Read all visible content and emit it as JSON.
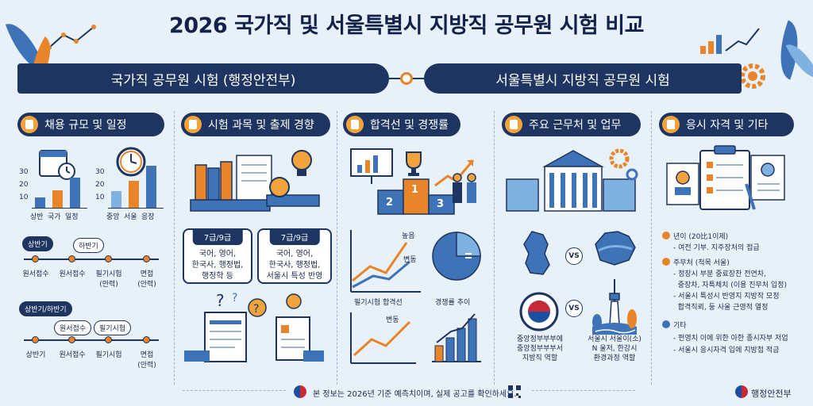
{
  "title": "2026 국가직 및 서울특별시 지방직 공무원 시험 비교",
  "banner_left": "국가직 공무원 시험 (행정안전부)",
  "banner_right": "서울특별시 지방직 공무원 시험",
  "colors": {
    "navy": "#1e3461",
    "orange": "#e8852a",
    "blue": "#3e73b8",
    "light_blue": "#7fb2e0",
    "bg": "#e8f0f8"
  },
  "columns": [
    {
      "title": "채용 규모 및 일정",
      "icon": "calendar-icon"
    },
    {
      "title": "시험 과목 및 출제 경향",
      "icon": "document-icon"
    },
    {
      "title": "합격선 및 경쟁률",
      "icon": "chart-icon"
    },
    {
      "title": "주요 근무처 및 업무",
      "icon": "briefcase-icon"
    },
    {
      "title": "응시 자격 및 기타",
      "icon": "checklist-icon"
    }
  ],
  "col1": {
    "chart1": {
      "ticks": [
        "30",
        "20",
        "10"
      ],
      "labels": [
        "상반",
        "국가",
        "일정"
      ],
      "values": [
        8,
        14,
        24
      ]
    },
    "chart2": {
      "ticks": [
        "30",
        "20",
        "10"
      ],
      "labels": [
        "중앙",
        "서울",
        "응장"
      ],
      "values": [
        13,
        21,
        33
      ]
    },
    "timeline1": {
      "tag_a": "상반기",
      "tag_b": "하반기",
      "steps": [
        "원서접수",
        "원서접수",
        "필기시험\n(만력)",
        "면접\n(안력)"
      ]
    },
    "timeline2": {
      "tag_a": "상반기/하반기",
      "pill_a": "원서접수",
      "pill_b": "필기시험",
      "steps": [
        "상반기",
        "원서접수",
        "필기시험",
        "면접\n(안력)"
      ]
    }
  },
  "col2": {
    "card_left": {
      "tag": "7급/9급",
      "lines": [
        "국어, 영어,",
        "한국사, 행정법,",
        "행정학 등"
      ]
    },
    "card_right": {
      "tag": "7급/9급",
      "lines": [
        "국어, 영어,",
        "한국사, 행정법,",
        "서울시 특성 반영"
      ]
    }
  },
  "col3": {
    "podium": [
      "2",
      "1",
      "3"
    ],
    "line_chart_1": {
      "label_a": "높음",
      "label_b": "변동",
      "caption": "필기시험 합격선"
    },
    "pie_chart": {
      "caption": "경쟁률 추이",
      "slices": [
        65,
        35
      ]
    },
    "line_chart_2": {
      "label": "변동"
    }
  },
  "col4": {
    "vs_1": "VS",
    "vs_2": "VS",
    "caption_left": "중앙정부부부에\n중앙정부부부서\n지방직 역할",
    "caption_right": "서울시 서울이(소)\nN 울저, 한강시\n환경과정 역할"
  },
  "col5": {
    "items": [
      {
        "bullet_color": "#e8852a",
        "head": "년이 (20比1이제)",
        "subs": [
          "- 여전 기부. 지주장처의 접급"
        ]
      },
      {
        "bullet_color": "#e8852a",
        "head": "주무처 (척목 서울)",
        "subs": [
          "- 정장시 부분 중료장찬 전연차,",
          "  중장차, 자특체치 (이용 진무처 입정)",
          "- 서울시 특성시 반영지 지방작 모정",
          "  합격직뢰, 둥 사울 근영적 열정"
        ]
      },
      {
        "bullet_color": "#3e73b8",
        "head": "기타",
        "subs": [
          "- 펀영치 이에 위한 아한 종시자부 저업",
          "- 서울시 응시자격 입에 지방첩 적금"
        ]
      }
    ]
  },
  "footer": "본 정보는 2026년 기준 예측치이며, 실제 공고를 확인하세요.",
  "footer_brand": "행정안전부"
}
